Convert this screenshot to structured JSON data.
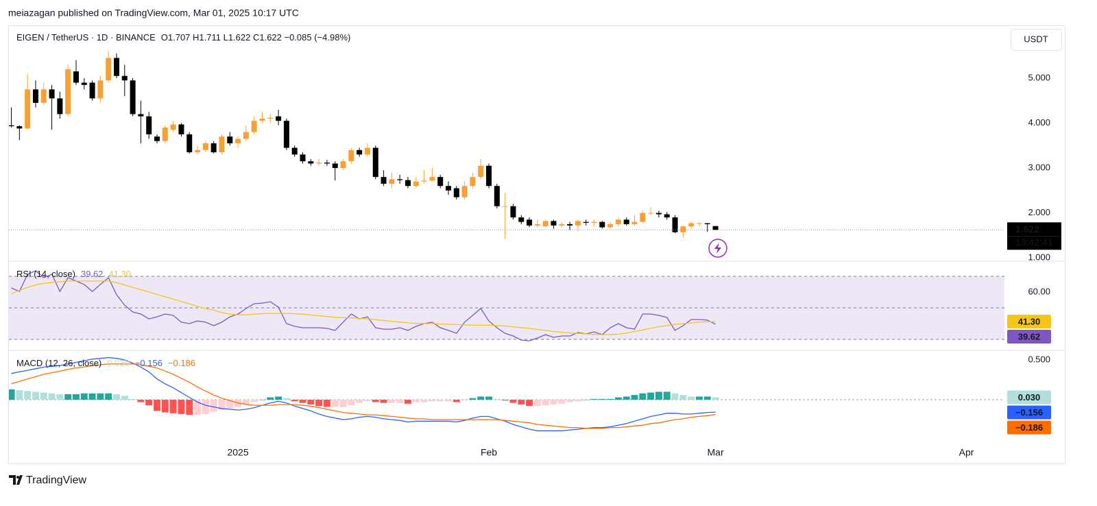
{
  "header": {
    "publisher": "meiazagan published on TradingView.com, Mar 01, 2025 10:17 UTC",
    "footer": "TradingView"
  },
  "chart_data": [
    {
      "type": "candlestick",
      "title": "EIGEN / TetherUS · 1D · BINANCE",
      "ohlc_label": "O1.707 H1.711 L1.622 C1.622 −0.085 (−4.98%)",
      "currency": "USDT",
      "countdown": "13:42:41",
      "up_color": "#f7a134",
      "down_color": "#000000",
      "x": [
        -28,
        -27,
        -26,
        -25,
        -24,
        -23,
        -22,
        -21,
        -20,
        -19,
        -18,
        -17,
        -16,
        -15,
        -14,
        -13,
        -12,
        -11,
        -10,
        -9,
        -8,
        -7,
        -6,
        -5,
        -4,
        -3,
        -2,
        -1,
        0,
        1,
        2,
        3,
        4,
        5,
        6,
        7,
        8,
        9,
        10,
        11,
        12,
        13,
        14,
        15,
        16,
        17,
        18,
        19,
        20,
        21,
        22,
        23,
        24,
        25,
        26,
        27,
        28,
        29,
        30,
        31,
        32,
        33,
        34,
        35,
        36,
        37,
        38,
        39,
        40,
        41,
        42,
        43,
        44,
        45,
        46,
        47,
        48,
        49,
        50,
        51,
        52,
        53,
        54,
        55,
        56,
        57,
        58,
        59
      ],
      "open": [
        3.95,
        3.93,
        3.88,
        4.75,
        4.45,
        4.75,
        4.55,
        4.2,
        5.15,
        4.9,
        4.9,
        4.55,
        4.95,
        5.45,
        5.05,
        4.95,
        4.2,
        4.15,
        3.7,
        3.6,
        3.85,
        3.97,
        3.75,
        3.35,
        3.4,
        3.55,
        3.35,
        3.7,
        3.55,
        3.65,
        3.8,
        4.05,
        4.1,
        4.15,
        4.05,
        3.45,
        3.3,
        3.15,
        3.1,
        3.12,
        3.1,
        3.0,
        3.15,
        3.4,
        3.3,
        3.45,
        2.8,
        2.65,
        2.75,
        2.73,
        2.6,
        2.7,
        2.72,
        2.8,
        2.6,
        2.55,
        2.35,
        2.6,
        2.8,
        3.05,
        2.6,
        2.15,
        2.15,
        1.9,
        1.85,
        1.72,
        1.7,
        1.82,
        1.72,
        1.75,
        1.72,
        1.8,
        1.78,
        1.8,
        1.68,
        1.75,
        1.85,
        1.75,
        1.8,
        2.0,
        2.0,
        1.97,
        1.9,
        1.57,
        1.7,
        1.77,
        1.77,
        1.707
      ],
      "high": [
        4.35,
        3.95,
        5.1,
        4.95,
        4.9,
        4.85,
        4.7,
        5.3,
        5.4,
        5.0,
        4.95,
        5.05,
        5.6,
        5.55,
        5.3,
        5.0,
        4.5,
        4.25,
        3.75,
        3.95,
        4.05,
        4.0,
        3.8,
        3.5,
        3.6,
        3.6,
        3.75,
        3.8,
        3.7,
        3.95,
        4.15,
        4.25,
        4.2,
        4.3,
        4.1,
        3.5,
        3.35,
        3.2,
        3.2,
        3.18,
        3.15,
        3.2,
        3.45,
        3.45,
        3.55,
        3.5,
        2.95,
        2.9,
        2.85,
        2.8,
        2.8,
        2.95,
        3.0,
        2.85,
        2.7,
        2.6,
        2.7,
        2.9,
        3.2,
        3.1,
        2.65,
        2.45,
        2.2,
        1.95,
        1.9,
        1.85,
        1.85,
        1.85,
        1.8,
        1.8,
        1.85,
        1.85,
        1.85,
        1.82,
        1.8,
        1.9,
        1.9,
        1.95,
        2.05,
        2.12,
        2.05,
        2.02,
        1.95,
        1.72,
        1.8,
        1.8,
        1.78,
        1.711
      ],
      "low": [
        3.9,
        3.62,
        3.85,
        4.35,
        4.4,
        3.85,
        4.1,
        4.15,
        4.85,
        4.75,
        4.5,
        4.45,
        4.9,
        5.0,
        4.6,
        4.15,
        3.55,
        3.65,
        3.55,
        3.55,
        3.8,
        3.7,
        3.32,
        3.3,
        3.35,
        3.32,
        3.3,
        3.5,
        3.45,
        3.6,
        3.75,
        4.0,
        4.0,
        3.95,
        3.4,
        3.25,
        3.1,
        3.05,
        3.05,
        3.05,
        2.72,
        2.95,
        3.1,
        3.25,
        3.25,
        2.75,
        2.6,
        2.55,
        2.65,
        2.55,
        2.55,
        2.65,
        2.7,
        2.55,
        2.4,
        2.3,
        2.3,
        2.55,
        2.75,
        2.55,
        2.1,
        1.42,
        1.85,
        1.75,
        1.68,
        1.68,
        1.68,
        1.65,
        1.68,
        1.62,
        1.6,
        1.72,
        1.7,
        1.65,
        1.65,
        1.7,
        1.72,
        1.72,
        1.78,
        1.95,
        1.9,
        1.85,
        1.55,
        1.45,
        1.65,
        1.7,
        1.58,
        1.622
      ],
      "close": [
        3.93,
        3.88,
        4.75,
        4.45,
        4.75,
        4.55,
        4.2,
        5.2,
        4.9,
        4.85,
        4.55,
        4.95,
        5.45,
        5.05,
        4.95,
        4.2,
        4.15,
        3.75,
        3.6,
        3.9,
        3.97,
        3.75,
        3.35,
        3.4,
        3.55,
        3.35,
        3.7,
        3.55,
        3.65,
        3.8,
        4.05,
        4.1,
        4.12,
        4.05,
        3.45,
        3.3,
        3.15,
        3.1,
        3.12,
        3.1,
        3.0,
        3.15,
        3.4,
        3.3,
        3.45,
        2.8,
        2.65,
        2.75,
        2.73,
        2.6,
        2.7,
        2.72,
        2.8,
        2.6,
        2.5,
        2.35,
        2.6,
        2.8,
        3.05,
        2.6,
        2.15,
        2.15,
        1.9,
        1.8,
        1.72,
        1.75,
        1.82,
        1.72,
        1.75,
        1.72,
        1.82,
        1.78,
        1.8,
        1.68,
        1.75,
        1.85,
        1.75,
        1.8,
        2.0,
        2.0,
        1.97,
        1.9,
        1.57,
        1.7,
        1.77,
        1.77,
        1.75,
        1.622
      ],
      "xlim": [
        -28.3,
        94.7
      ],
      "xticks": [
        {
          "value": 0,
          "label": "2025"
        },
        {
          "value": 31,
          "label": "Feb"
        },
        {
          "value": 59,
          "label": "Mar"
        },
        {
          "value": 90,
          "label": "Apr"
        }
      ],
      "ylim": [
        0.94,
        6.16
      ],
      "yticks": [
        {
          "value": 1,
          "label": "1.000"
        },
        {
          "value": 2,
          "label": "2.000"
        },
        {
          "value": 3,
          "label": "3.000"
        },
        {
          "value": 4,
          "label": "4.000"
        },
        {
          "value": 5,
          "label": "5.000"
        }
      ]
    },
    {
      "type": "rsi",
      "title": "RSI (14, close)",
      "band_fill": "#ede7f6",
      "bands": [
        70,
        50,
        30
      ],
      "ylim": [
        23.5,
        79.1
      ],
      "yticks": [
        {
          "value": 60,
          "label": "60.00"
        }
      ],
      "series": [
        {
          "color": "#7e57c2",
          "values": [
            62.6,
            60.4,
            71.3,
            73.5,
            69.1,
            71.3,
            60.4,
            69.1,
            67.0,
            64.8,
            60.4,
            64.8,
            69.1,
            58.3,
            51.7,
            47.4,
            46.1,
            43.0,
            44.3,
            46.1,
            45.2,
            40.9,
            40.0,
            41.7,
            40.9,
            38.7,
            40.9,
            44.3,
            46.1,
            49.6,
            52.6,
            53.0,
            53.9,
            50.4,
            40.0,
            38.3,
            37.4,
            37.4,
            37.4,
            37.0,
            35.7,
            40.9,
            46.1,
            43.0,
            44.3,
            37.4,
            36.5,
            36.5,
            37.4,
            35.7,
            38.3,
            40.0,
            40.9,
            37.4,
            35.7,
            33.9,
            40.9,
            45.2,
            49.6,
            41.7,
            37.4,
            33.9,
            32.2,
            29.6,
            29.1,
            30.9,
            33.0,
            31.3,
            32.2,
            32.2,
            34.3,
            33.5,
            34.8,
            33.0,
            37.4,
            40.0,
            37.4,
            36.5,
            46.1,
            46.1,
            45.2,
            43.9,
            35.7,
            38.7,
            42.6,
            42.6,
            42.2,
            39.62
          ]
        },
        {
          "color": "#f5c518",
          "last_label": "41.30",
          "values": [
            59,
            61,
            63,
            64.5,
            65.5,
            66,
            66.5,
            67,
            67,
            67,
            67,
            67,
            67,
            66,
            64.5,
            63,
            61.5,
            60,
            58.5,
            57,
            55.5,
            54,
            52.5,
            51,
            49.5,
            48.5,
            47,
            46,
            45.6,
            45.6,
            46,
            46.3,
            46.5,
            46.5,
            46.5,
            46.3,
            46,
            45.5,
            45,
            44.5,
            44,
            43.8,
            43.6,
            43.3,
            43,
            42.5,
            42,
            41.5,
            41,
            40.5,
            40.2,
            40,
            40,
            39.8,
            39.6,
            39.4,
            39.2,
            39,
            39,
            39,
            38.8,
            38.5,
            38,
            37.5,
            37,
            36.3,
            35.7,
            35,
            34.5,
            34.2,
            33.8,
            33.5,
            33.2,
            33,
            33,
            33.3,
            34,
            35,
            36,
            37,
            38,
            38.8,
            39.5,
            40,
            40.5,
            41,
            41.2,
            41.3
          ]
        }
      ]
    },
    {
      "type": "macd",
      "title": "MACD (12, 26, close)",
      "ylim": [
        -0.56,
        0.612
      ],
      "yticks": [
        {
          "value": 0.5,
          "label": "0.500"
        }
      ],
      "histogram": {
        "colors": [
          "#26a69a",
          "#b2dfdb",
          "#ff5252",
          "#ffcdd2"
        ],
        "last_label": "0.030",
        "values": [
          0.13,
          0.12,
          0.11,
          0.1,
          0.09,
          0.08,
          0.07,
          0.07,
          0.07,
          0.08,
          0.08,
          0.08,
          0.08,
          0.07,
          0.05,
          0.01,
          -0.03,
          -0.07,
          -0.14,
          -0.16,
          -0.17,
          -0.18,
          -0.19,
          -0.19,
          -0.18,
          -0.15,
          -0.13,
          -0.11,
          -0.09,
          -0.06,
          -0.03,
          0,
          0.03,
          0.04,
          0.02,
          -0.02,
          -0.04,
          -0.06,
          -0.08,
          -0.09,
          -0.09,
          -0.09,
          -0.07,
          -0.04,
          -0.02,
          -0.03,
          -0.04,
          -0.04,
          -0.04,
          -0.05,
          -0.03,
          -0.03,
          -0.02,
          -0.02,
          -0.02,
          -0.03,
          -0.01,
          0.02,
          0.04,
          0.04,
          0.01,
          -0.01,
          -0.04,
          -0.06,
          -0.08,
          -0.08,
          -0.07,
          -0.06,
          -0.05,
          -0.03,
          -0.02,
          0,
          0.01,
          0.01,
          0.01,
          0.03,
          0.04,
          0.06,
          0.08,
          0.09,
          0.1,
          0.1,
          0.08,
          0.06,
          0.04,
          0.04,
          0.04,
          0.03
        ]
      },
      "series": [
        {
          "color": "#2962ff",
          "last_label": "−0.156",
          "values": [
            0.33,
            0.35,
            0.37,
            0.39,
            0.41,
            0.42,
            0.43,
            0.45,
            0.47,
            0.49,
            0.51,
            0.52,
            0.53,
            0.52,
            0.5,
            0.46,
            0.41,
            0.35,
            0.26,
            0.2,
            0.15,
            0.09,
            0.03,
            -0.03,
            -0.07,
            -0.09,
            -0.11,
            -0.12,
            -0.13,
            -0.12,
            -0.1,
            -0.07,
            -0.04,
            -0.02,
            -0.04,
            -0.08,
            -0.11,
            -0.14,
            -0.18,
            -0.21,
            -0.23,
            -0.25,
            -0.24,
            -0.22,
            -0.21,
            -0.22,
            -0.24,
            -0.25,
            -0.26,
            -0.28,
            -0.27,
            -0.27,
            -0.27,
            -0.27,
            -0.27,
            -0.28,
            -0.26,
            -0.23,
            -0.21,
            -0.21,
            -0.24,
            -0.27,
            -0.31,
            -0.34,
            -0.37,
            -0.39,
            -0.39,
            -0.39,
            -0.39,
            -0.38,
            -0.37,
            -0.36,
            -0.35,
            -0.35,
            -0.34,
            -0.32,
            -0.3,
            -0.27,
            -0.24,
            -0.21,
            -0.19,
            -0.17,
            -0.17,
            -0.18,
            -0.18,
            -0.17,
            -0.16,
            -0.156
          ]
        },
        {
          "color": "#ff6d00",
          "last_label": "−0.186",
          "values": [
            0.2,
            0.23,
            0.26,
            0.29,
            0.32,
            0.34,
            0.36,
            0.38,
            0.4,
            0.41,
            0.43,
            0.44,
            0.45,
            0.45,
            0.45,
            0.45,
            0.44,
            0.42,
            0.4,
            0.36,
            0.32,
            0.27,
            0.22,
            0.16,
            0.11,
            0.06,
            0.02,
            -0.01,
            -0.04,
            -0.06,
            -0.07,
            -0.07,
            -0.07,
            -0.06,
            -0.06,
            -0.06,
            -0.07,
            -0.08,
            -0.1,
            -0.12,
            -0.14,
            -0.16,
            -0.17,
            -0.18,
            -0.19,
            -0.19,
            -0.2,
            -0.21,
            -0.22,
            -0.23,
            -0.24,
            -0.24,
            -0.25,
            -0.25,
            -0.25,
            -0.25,
            -0.25,
            -0.25,
            -0.25,
            -0.25,
            -0.25,
            -0.26,
            -0.27,
            -0.28,
            -0.29,
            -0.31,
            -0.32,
            -0.33,
            -0.34,
            -0.35,
            -0.35,
            -0.36,
            -0.36,
            -0.36,
            -0.35,
            -0.35,
            -0.34,
            -0.33,
            -0.32,
            -0.3,
            -0.29,
            -0.27,
            -0.25,
            -0.24,
            -0.22,
            -0.21,
            -0.2,
            -0.186
          ]
        }
      ]
    }
  ]
}
